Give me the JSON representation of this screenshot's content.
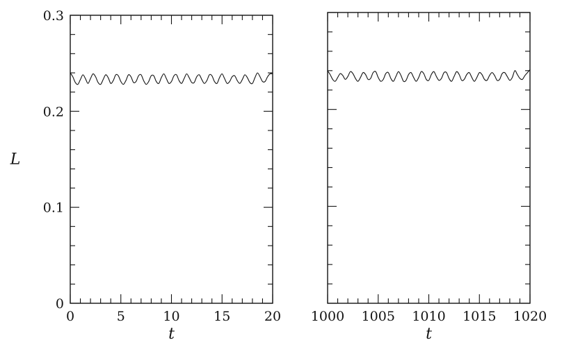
{
  "chart_data": [
    {
      "type": "line",
      "title": "",
      "xlabel": "t",
      "ylabel": "L",
      "xlim": [
        0,
        20
      ],
      "ylim": [
        0,
        0.3
      ],
      "xticks": [
        0,
        5,
        10,
        15,
        20
      ],
      "xtick_labels": [
        "0",
        "5",
        "10",
        "15",
        "20"
      ],
      "yticks": [
        0,
        0.1,
        0.2,
        0.3
      ],
      "ytick_labels": [
        "0",
        "0.1",
        "0.2",
        "0.3"
      ],
      "grid": false,
      "series": [
        {
          "x": [
            0,
            0.25,
            0.5,
            0.75,
            1,
            1.25,
            1.5,
            1.75,
            2,
            2.25,
            2.5,
            2.75,
            3,
            3.25,
            3.5,
            3.75,
            4,
            4.25,
            4.5,
            4.75,
            5,
            5.25,
            5.5,
            5.75,
            6,
            6.25,
            6.5,
            6.75,
            7,
            7.25,
            7.5,
            7.75,
            8,
            8.25,
            8.5,
            8.75,
            9,
            9.25,
            9.5,
            9.75,
            10,
            10.25,
            10.5,
            10.75,
            11,
            11.25,
            11.5,
            11.75,
            12,
            12.25,
            12.5,
            12.75,
            13,
            13.25,
            13.5,
            13.75,
            14,
            14.25,
            14.5,
            14.75,
            15,
            15.25,
            15.5,
            15.75,
            16,
            16.25,
            16.5,
            16.75,
            17,
            17.25,
            17.5,
            17.75,
            18,
            18.25,
            18.5,
            18.75,
            19,
            19.25,
            19.5,
            19.75,
            20
          ],
          "values": [
            0.24,
            0.236,
            0.23,
            0.228,
            0.233,
            0.238,
            0.234,
            0.229,
            0.234,
            0.239,
            0.236,
            0.23,
            0.228,
            0.233,
            0.238,
            0.235,
            0.229,
            0.232,
            0.238,
            0.237,
            0.231,
            0.228,
            0.232,
            0.238,
            0.236,
            0.23,
            0.231,
            0.237,
            0.238,
            0.232,
            0.228,
            0.231,
            0.237,
            0.237,
            0.231,
            0.229,
            0.235,
            0.239,
            0.234,
            0.229,
            0.231,
            0.237,
            0.238,
            0.232,
            0.229,
            0.234,
            0.239,
            0.235,
            0.23,
            0.23,
            0.236,
            0.238,
            0.233,
            0.229,
            0.232,
            0.238,
            0.237,
            0.231,
            0.229,
            0.235,
            0.239,
            0.234,
            0.229,
            0.231,
            0.236,
            0.237,
            0.232,
            0.229,
            0.233,
            0.238,
            0.235,
            0.23,
            0.229,
            0.235,
            0.24,
            0.236,
            0.231,
            0.231,
            0.236,
            0.239,
            0.239
          ]
        }
      ]
    },
    {
      "type": "line",
      "title": "",
      "xlabel": "t",
      "ylabel": "",
      "xlim": [
        1000,
        1020
      ],
      "ylim": [
        0,
        0.3
      ],
      "xticks": [
        1000,
        1005,
        1010,
        1015,
        1020
      ],
      "xtick_labels": [
        "1000",
        "1005",
        "1010",
        "1015",
        "1020"
      ],
      "yticks": [
        0,
        0.1,
        0.2,
        0.3
      ],
      "ytick_labels": [],
      "grid": false,
      "series": [
        {
          "x": [
            1000,
            1000.25,
            1000.5,
            1000.75,
            1001,
            1001.25,
            1001.5,
            1001.75,
            1002,
            1002.25,
            1002.5,
            1002.75,
            1003,
            1003.25,
            1003.5,
            1003.75,
            1004,
            1004.25,
            1004.5,
            1004.75,
            1005,
            1005.25,
            1005.5,
            1005.75,
            1006,
            1006.25,
            1006.5,
            1006.75,
            1007,
            1007.25,
            1007.5,
            1007.75,
            1008,
            1008.25,
            1008.5,
            1008.75,
            1009,
            1009.25,
            1009.5,
            1009.75,
            1010,
            1010.25,
            1010.5,
            1010.75,
            1011,
            1011.25,
            1011.5,
            1011.75,
            1012,
            1012.25,
            1012.5,
            1012.75,
            1013,
            1013.25,
            1013.5,
            1013.75,
            1014,
            1014.25,
            1014.5,
            1014.75,
            1015,
            1015.25,
            1015.5,
            1015.75,
            1016,
            1016.25,
            1016.5,
            1016.75,
            1017,
            1017.25,
            1017.5,
            1017.75,
            1018,
            1018.25,
            1018.5,
            1018.75,
            1019,
            1019.25,
            1019.5,
            1019.75,
            1020
          ],
          "values": [
            0.24,
            0.236,
            0.231,
            0.229,
            0.233,
            0.237,
            0.235,
            0.231,
            0.234,
            0.239,
            0.237,
            0.232,
            0.229,
            0.233,
            0.238,
            0.236,
            0.231,
            0.232,
            0.238,
            0.239,
            0.233,
            0.229,
            0.231,
            0.237,
            0.238,
            0.232,
            0.229,
            0.234,
            0.239,
            0.235,
            0.229,
            0.23,
            0.236,
            0.238,
            0.233,
            0.229,
            0.233,
            0.239,
            0.237,
            0.231,
            0.23,
            0.236,
            0.239,
            0.234,
            0.23,
            0.232,
            0.238,
            0.238,
            0.232,
            0.229,
            0.234,
            0.239,
            0.236,
            0.23,
            0.231,
            0.236,
            0.238,
            0.233,
            0.229,
            0.233,
            0.238,
            0.236,
            0.231,
            0.23,
            0.235,
            0.238,
            0.235,
            0.23,
            0.231,
            0.237,
            0.238,
            0.234,
            0.23,
            0.233,
            0.24,
            0.236,
            0.232,
            0.231,
            0.235,
            0.238,
            0.241
          ]
        }
      ]
    }
  ]
}
